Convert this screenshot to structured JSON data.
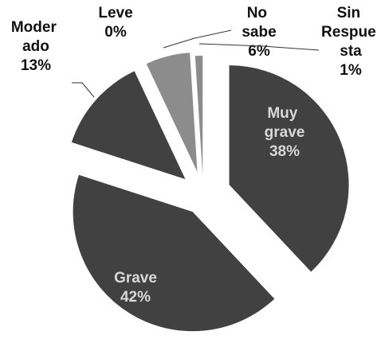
{
  "chart_data": {
    "type": "pie",
    "categories": [
      "Muy grave",
      "Grave",
      "Moder ado",
      "Leve",
      "No sabe",
      "Sin Respue sta"
    ],
    "values": [
      38,
      42,
      13,
      0,
      6,
      1
    ],
    "value_labels": [
      "38%",
      "42%",
      "13%",
      "0%",
      "6%",
      "1%"
    ],
    "colors": [
      "#414141",
      "#414141",
      "#414141",
      "#414141",
      "#8c8c8c",
      "#8c8c8c"
    ]
  }
}
